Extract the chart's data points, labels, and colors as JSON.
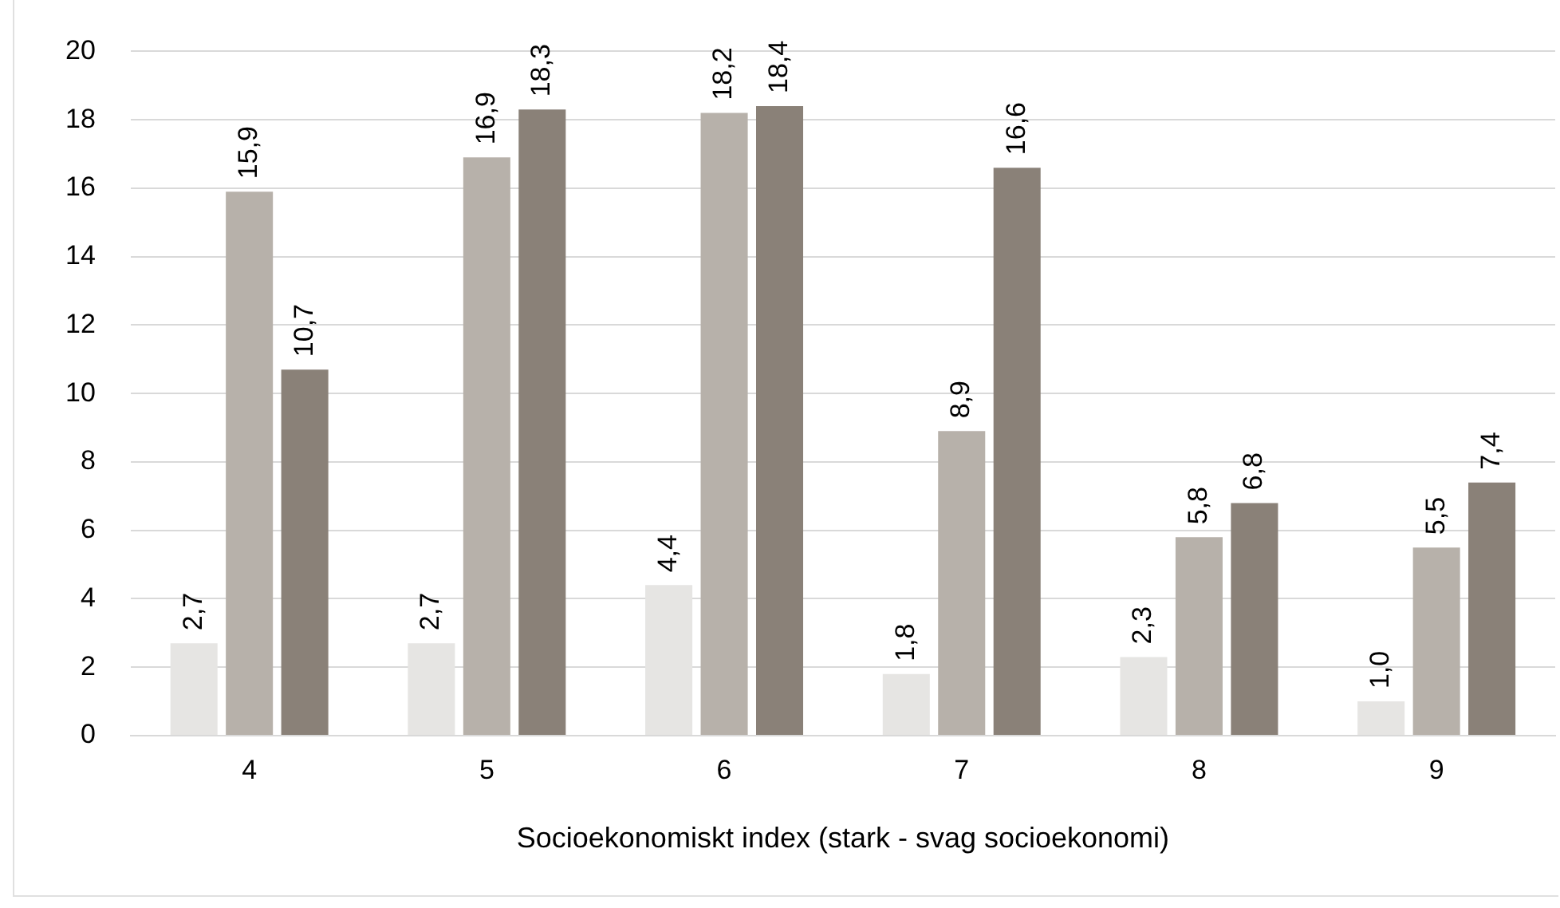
{
  "chart_data": {
    "type": "bar",
    "xlabel": "Socioekonomiskt index (stark - svag socioekonomi)",
    "categories": [
      "4",
      "5",
      "6",
      "7",
      "8",
      "9"
    ],
    "series": [
      {
        "color": "#e6e5e3",
        "values": [
          2.7,
          2.7,
          4.4,
          1.8,
          2.3,
          1.0
        ],
        "value_labels": [
          "2,7",
          "2,7",
          "4,4",
          "1,8",
          "2,3",
          "1,0"
        ]
      },
      {
        "color": "#b7b1aa",
        "values": [
          15.9,
          16.9,
          18.2,
          8.9,
          5.8,
          5.5
        ],
        "value_labels": [
          "15,9",
          "16,9",
          "18,2",
          "8,9",
          "5,8",
          "5,5"
        ]
      },
      {
        "color": "#8a8178",
        "values": [
          10.7,
          18.3,
          18.4,
          16.6,
          6.8,
          7.4
        ],
        "value_labels": [
          "10,7",
          "18,3",
          "18,4",
          "16,6",
          "6,8",
          "7,4"
        ]
      }
    ],
    "ylim": [
      0,
      20
    ],
    "yticks": [
      0,
      2,
      4,
      6,
      8,
      10,
      12,
      14,
      16,
      18,
      20
    ],
    "grid": "y",
    "legend": false
  }
}
